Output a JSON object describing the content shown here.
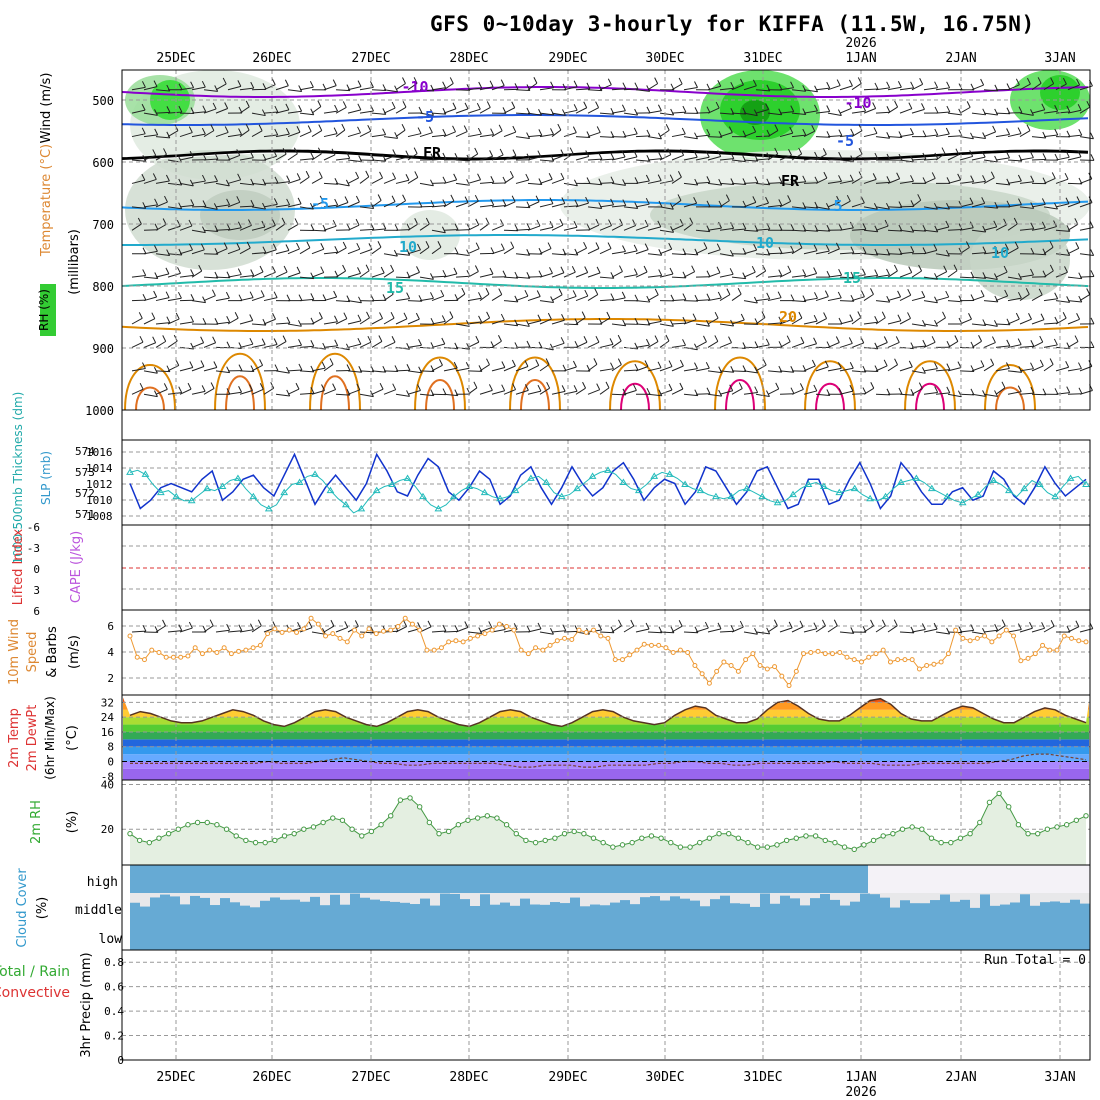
{
  "title": "GFS 0~10day 3-hourly for KIFFA (11.5W, 16.75N)",
  "day_labels": [
    "25DEC",
    "26DEC",
    "27DEC",
    "28DEC",
    "29DEC",
    "30DEC",
    "31DEC",
    "1JAN",
    "2JAN",
    "3JAN"
  ],
  "year_label": "2026",
  "panel_labels": {
    "upper_rh": "RH (%)",
    "upper_temp": "Temperature (°C)",
    "upper_wind": "Wind (m/s)",
    "upper_units": "(millibars)",
    "thickness": "1000-500mb Thickness (dm)",
    "slp": "SLP (mb)",
    "lifted": "Lifted Index",
    "cape": "CAPE (J/kg)",
    "wind10_a": "10m Wind",
    "wind10_b": "Speed",
    "wind10_c": "& Barbs",
    "wind10_units": "(m/s)",
    "t2m_a": "2m Temp",
    "t2m_b": "2m DewPt",
    "t2m_c": "(6hr Min/Max)",
    "t2m_units": "(°C)",
    "rh2m": "2m RH",
    "rh2m_units": "(%)",
    "cloud": "Cloud Cover",
    "cloud_units": "(%)",
    "cloud_high": "high",
    "cloud_middle": "middle",
    "cloud_low": "low",
    "precip_a": "Total / Rain",
    "precip_b": "Convective",
    "precip_units": "3hr Precip (mm)",
    "run_total": "Run Total = 0"
  },
  "colors": {
    "rh_green": "#33cc33",
    "temp_purple": "#8800cc",
    "temp_blue": "#2255dd",
    "temp_cyan": "#22aacc",
    "temp_teal": "#22bbaa",
    "temp_orange": "#dd8800",
    "temp_magenta": "#dd0077",
    "slp_blue": "#1133cc",
    "thickness_cyan": "#22bbbb",
    "wind_orange": "#ee9933",
    "rh2m_green": "#449944",
    "cloud_blue": "#66aad4",
    "label_red": "#dd3333",
    "label_orange": "#dd8833",
    "label_purple": "#bb55dd",
    "label_teal": "#22aaaa",
    "label_green": "#33aa33",
    "label_blue": "#3399cc"
  },
  "chart_data": [
    {
      "type": "heatmap",
      "panel": "upper-air cross section",
      "y_ticks": [
        "500",
        "600",
        "700",
        "800",
        "900",
        "1000"
      ],
      "contour_labels": [
        "-10",
        "-5",
        "FR",
        "-5",
        "10",
        "15",
        "20",
        "10",
        "-10",
        "FR",
        "-5",
        "5",
        "10",
        "15"
      ]
    },
    {
      "type": "line",
      "panel": "thickness and SLP",
      "thickness_ticks": [
        "574",
        "573",
        "572",
        "571"
      ],
      "slp_ticks": [
        "1016",
        "1014",
        "1012",
        "1010",
        "1008"
      ],
      "series": [
        {
          "name": "SLP (mb)",
          "values": [
            1012.5,
            1009.5,
            1010.5,
            1012,
            1012.5,
            1012,
            1011.5,
            1013,
            1014,
            1010.5,
            1011.5,
            1013,
            1013.5,
            1012,
            1011,
            1013.5,
            1016,
            1013,
            1010,
            1012,
            1013.5,
            1012,
            1010.5,
            1012.5,
            1016,
            1014,
            1011.5,
            1011,
            1013.5,
            1015.5,
            1014.5,
            1011.5,
            1010.5,
            1012,
            1014,
            1013,
            1010,
            1011,
            1013.5,
            1014.5,
            1012,
            1010,
            1012,
            1014.5,
            1012.5,
            1011,
            1012,
            1014,
            1015,
            1013,
            1010.5,
            1012,
            1013,
            1012.5,
            1010,
            1011.5,
            1014.5,
            1014,
            1012,
            1010,
            1011.5,
            1014,
            1014.5,
            1012,
            1009.5,
            1010,
            1013,
            1013,
            1010,
            1010.5,
            1013,
            1015,
            1012.5,
            1009.5,
            1011,
            1015,
            1013.5,
            1011.5,
            1010,
            1010,
            1011.5,
            1012,
            1010.5,
            1011,
            1014,
            1013,
            1011,
            1010,
            1012,
            1014.5,
            1012.5,
            1011,
            1012,
            1013
          ]
        },
        {
          "name": "1000-500mb Thickness (dm)",
          "values": [
            573.2,
            573.3,
            573.1,
            572.6,
            572.2,
            572.3,
            572.0,
            571.8,
            571.8,
            572.1,
            572.4,
            572.3,
            572.5,
            572.8,
            572.9,
            572.4,
            572.0,
            571.6,
            571.4,
            571.6,
            572.2,
            572.6,
            572.7,
            573.0,
            573.1,
            572.8,
            572.3,
            571.9,
            571.6,
            571.2,
            571.4,
            571.9,
            572.3,
            572.5,
            572.6,
            572.8,
            572.9,
            572.5,
            572.0,
            571.6,
            571.4,
            571.6,
            572.0,
            572.3,
            572.5,
            572.4,
            572.2,
            572.0,
            571.9,
            572.0,
            572.3,
            572.6,
            572.9,
            573.0,
            572.7,
            572.2,
            572.0,
            572.1,
            572.4,
            572.7,
            573.0,
            573.2,
            573.3,
            573.1,
            572.7,
            572.4,
            572.3,
            572.6,
            573.0,
            573.2,
            573.1,
            572.9,
            572.6,
            572.4,
            572.3,
            572.1,
            572.0,
            571.9,
            572.0,
            572.3,
            572.4,
            572.2,
            572.0,
            571.8,
            571.7,
            571.8,
            572.1,
            572.4,
            572.6,
            572.7,
            572.5,
            572.3,
            572.2,
            572.3,
            572.4,
            572.1,
            571.9,
            571.8,
            572.0,
            572.4,
            572.7,
            572.8,
            572.9,
            572.7,
            572.4,
            572.2,
            572.0,
            571.8,
            571.7,
            571.9,
            572.1,
            572.5,
            572.8,
            572.6,
            572.3,
            572.0,
            572.4,
            572.8,
            572.6,
            572.2,
            572.0,
            572.5,
            572.9,
            573.0,
            572.6
          ]
        }
      ]
    },
    {
      "type": "line",
      "panel": "lifted index and CAPE",
      "left_ticks": [
        "-6",
        "-3",
        "0",
        "3",
        "6"
      ],
      "series": []
    },
    {
      "type": "line",
      "panel": "10m wind speed",
      "y_ticks": [
        "6",
        "4",
        "2"
      ],
      "series": [
        {
          "name": "10m Wind Speed",
          "values": [
            5.0,
            3.2,
            3.0,
            3.8,
            3.6,
            3.2,
            3.2,
            3.2,
            3.3,
            4.0,
            3.5,
            3.8,
            3.6,
            4.0,
            3.5,
            3.7,
            3.8,
            4.0,
            4.2,
            5.2,
            5.6,
            5.3,
            5.5,
            5.3,
            5.6,
            6.5,
            6.0,
            5.0,
            5.2,
            4.8,
            4.5,
            5.5,
            5.0,
            5.6,
            5.2,
            5.4,
            5.5,
            5.8,
            6.5,
            6.0,
            5.5,
            3.8,
            3.8,
            4.0,
            4.5,
            4.6,
            4.5,
            4.8,
            5.0,
            5.2,
            5.5,
            6.0,
            5.8,
            5.5,
            3.8,
            3.5,
            4.0,
            3.8,
            4.2,
            4.6,
            4.8,
            4.7,
            5.5,
            5.3,
            5.5,
            5.0,
            4.8,
            3.0,
            3.0,
            3.4,
            3.8,
            4.3,
            4.2,
            4.2,
            4.0,
            3.6,
            3.8,
            3.6,
            2.5,
            1.8,
            1.0,
            2.0,
            2.8,
            2.5,
            2.0,
            3.0,
            3.5,
            2.5,
            2.2,
            2.4,
            1.6,
            0.8,
            2.0,
            3.5,
            3.6,
            3.7,
            3.5,
            3.5,
            3.6,
            3.2,
            3.0,
            2.8,
            3.2,
            3.5,
            3.8,
            2.8,
            3.0,
            3.0,
            3.0,
            2.2,
            2.5,
            2.6,
            2.8,
            3.5,
            5.5,
            4.8,
            4.6,
            4.8,
            5.0,
            4.5,
            5.0,
            5.5,
            5.0,
            2.9,
            3.1,
            3.5,
            4.2,
            3.8,
            3.8,
            5.0,
            4.8,
            4.6,
            4.5
          ]
        }
      ]
    },
    {
      "type": "area",
      "panel": "2m temperature and dewpoint",
      "y_ticks": [
        "32",
        "24",
        "16",
        "8",
        "0",
        "-8"
      ],
      "series": [
        {
          "name": "2m Temp",
          "values": [
            25,
            27,
            26,
            24,
            22,
            21,
            21,
            22,
            24,
            26,
            28,
            27,
            25,
            22,
            20,
            19,
            21,
            24,
            27,
            28,
            27,
            24,
            22,
            20,
            19,
            21,
            24,
            27,
            28,
            27,
            24,
            22,
            20,
            19,
            21,
            24,
            27,
            28,
            27,
            24,
            22,
            20,
            19,
            21,
            24,
            27,
            28,
            27,
            24,
            22,
            21,
            20,
            21,
            25,
            28,
            30,
            29,
            25,
            23,
            21,
            21,
            23,
            28,
            32,
            33,
            30,
            26,
            23,
            22,
            22,
            25,
            29,
            33,
            34,
            31,
            26,
            23,
            22,
            22,
            25,
            28,
            30,
            29,
            26,
            23,
            21,
            21,
            24,
            27,
            29,
            28,
            25,
            23,
            21
          ]
        },
        {
          "name": "2m DewPt",
          "values": [
            -1,
            -1,
            -1,
            -1,
            -1,
            -1,
            -1,
            -1,
            -1,
            -1,
            -1,
            0,
            -1,
            -1,
            -1,
            0,
            1,
            2,
            1,
            0,
            -1,
            -1,
            -2,
            -2,
            -1,
            -1,
            -1,
            -1,
            -1,
            -1,
            -2,
            -3,
            -3,
            -2,
            -2,
            -2,
            -3,
            -3,
            -2,
            -2,
            -2,
            -2,
            -1,
            -1,
            0,
            0,
            -1,
            -1,
            -2,
            -2,
            -1,
            -1,
            -1,
            -1,
            -1,
            -1,
            0,
            -1,
            -1,
            -1,
            -2,
            -2,
            -2,
            -1,
            -1,
            -1,
            -1,
            -1,
            -1,
            0,
            1,
            3,
            4,
            4,
            3,
            2,
            1
          ]
        }
      ]
    },
    {
      "type": "area",
      "panel": "2m relative humidity",
      "y_ticks": [
        "40",
        "20"
      ],
      "series": [
        {
          "name": "2m RH",
          "values": [
            18,
            15,
            14,
            16,
            18,
            20,
            22,
            23,
            23,
            22,
            20,
            17,
            15,
            14,
            14,
            15,
            17,
            18,
            20,
            21,
            23,
            25,
            24,
            20,
            17,
            19,
            22,
            26,
            33,
            34,
            30,
            23,
            18,
            19,
            22,
            24,
            25,
            26,
            25,
            22,
            18,
            15,
            14,
            15,
            16,
            18,
            19,
            18,
            16,
            14,
            12,
            13,
            14,
            16,
            17,
            16,
            14,
            12,
            12,
            14,
            16,
            18,
            18,
            16,
            14,
            12,
            12,
            13,
            15,
            16,
            17,
            17,
            15,
            14,
            12,
            11,
            13,
            15,
            17,
            18,
            20,
            21,
            20,
            16,
            14,
            14,
            16,
            18,
            23,
            32,
            36,
            30,
            22,
            18,
            18,
            20,
            21,
            22,
            24,
            26
          ]
        }
      ]
    },
    {
      "type": "area",
      "panel": "cloud cover",
      "categories": [
        "high",
        "middle",
        "low"
      ]
    },
    {
      "type": "bar",
      "panel": "3hr precipitation",
      "y_ticks": [
        "0.8",
        "0.6",
        "0.4",
        "0.2",
        "0"
      ],
      "ylim": [
        0,
        0.9
      ],
      "values": []
    }
  ]
}
